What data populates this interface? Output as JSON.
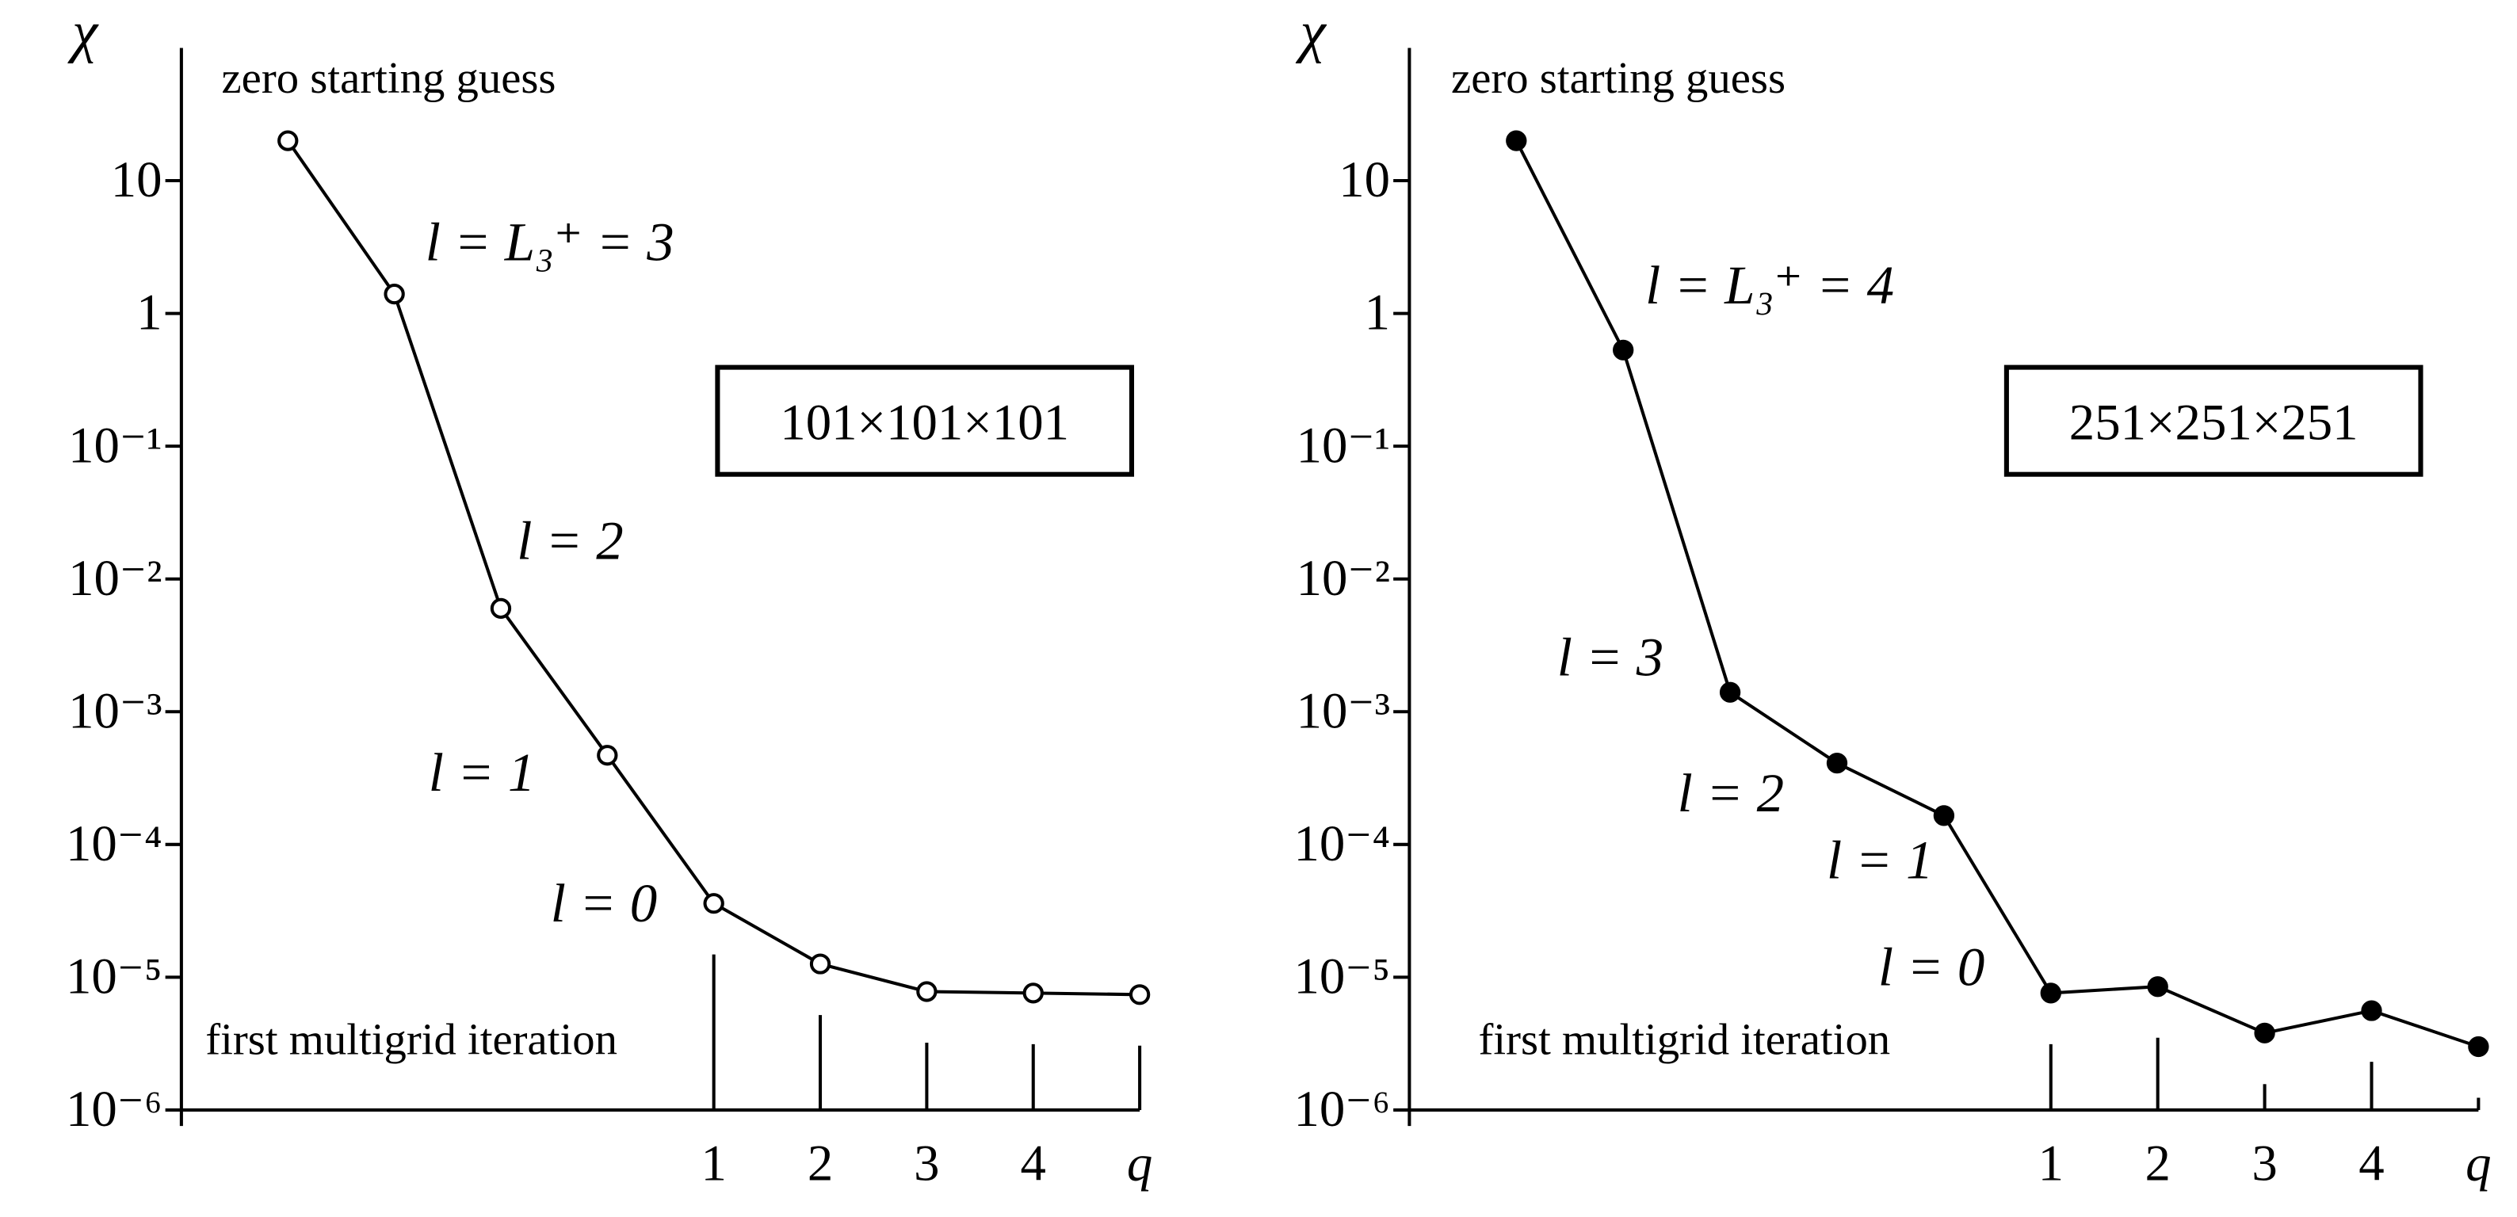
{
  "chart_data": [
    {
      "type": "line",
      "y_label": "χ",
      "log_y": true,
      "x": [
        -3,
        -2,
        -1,
        0,
        1,
        2,
        3,
        4,
        5
      ],
      "values": [
        20,
        1.4,
        0.006,
        0.00047,
        3.6e-05,
        1.26e-05,
        7.8e-06,
        7.6e-06,
        7.4e-06
      ],
      "color": "#000000",
      "marker_face": "#ffffff",
      "xlim": [
        -4,
        5
      ],
      "xticks": [
        1,
        2,
        3,
        4,
        {
          "value": 5,
          "label": "q"
        }
      ],
      "ylim": [
        1e-06,
        100
      ],
      "yticks": [
        {
          "value": 1e-06,
          "label": "10⁻⁶"
        },
        {
          "value": 1e-05,
          "label": "10⁻⁵"
        },
        {
          "value": 0.0001,
          "label": "10⁻⁴"
        },
        {
          "value": 0.001,
          "label": "10⁻³"
        },
        {
          "value": 0.01,
          "label": "10⁻²"
        },
        {
          "value": 0.1,
          "label": "10⁻¹"
        },
        1,
        10
      ],
      "box_label": "101×101×101",
      "annotations": [
        "zero starting guess",
        "l = L₃⁺ = 3",
        "l = 2",
        "l = 1",
        "l = 0",
        "first multigrid iteration"
      ]
    },
    {
      "type": "line",
      "y_label": "χ",
      "log_y": true,
      "x": [
        -4,
        -3,
        -2,
        -1,
        0,
        1,
        2,
        3,
        4,
        5
      ],
      "values": [
        20,
        0.53,
        0.0014,
        0.00041,
        0.000165,
        7.6e-06,
        8.5e-06,
        3.8e-06,
        5.6e-06,
        3e-06
      ],
      "color": "#000000",
      "marker_face": "#000000",
      "xlim": [
        -5,
        5
      ],
      "xticks": [
        1,
        2,
        3,
        4,
        {
          "value": 5,
          "label": "q"
        }
      ],
      "ylim": [
        1e-06,
        100
      ],
      "yticks": [
        {
          "value": 1e-06,
          "label": "10⁻⁶"
        },
        {
          "value": 1e-05,
          "label": "10⁻⁵"
        },
        {
          "value": 0.0001,
          "label": "10⁻⁴"
        },
        {
          "value": 0.001,
          "label": "10⁻³"
        },
        {
          "value": 0.01,
          "label": "10⁻²"
        },
        {
          "value": 0.1,
          "label": "10⁻¹"
        },
        1,
        10
      ],
      "box_label": "251×251×251",
      "annotations": [
        "zero starting guess",
        "l = L₃⁺ = 4",
        "l = 3",
        "l = 2",
        "l = 1",
        "l = 0",
        "first multigrid iteration"
      ]
    }
  ]
}
